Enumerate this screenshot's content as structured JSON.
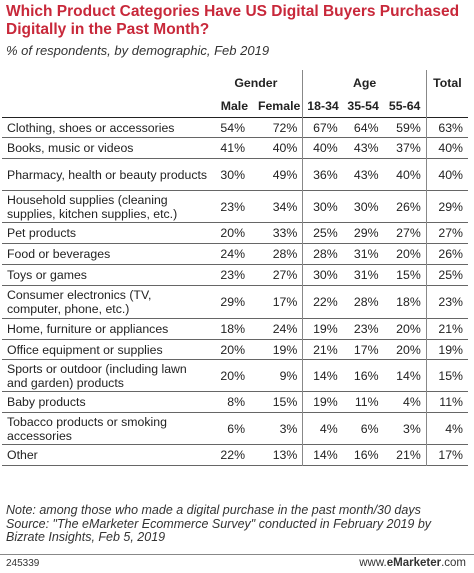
{
  "chart_data": {
    "type": "table",
    "title": "Which Product Categories Have US Digital Buyers Purchased Digitally in the Past Month?",
    "subtitle": "% of respondents, by demographic, Feb 2019",
    "groups": [
      {
        "label": "Gender",
        "columns": [
          "Male",
          "Female"
        ]
      },
      {
        "label": "Age",
        "columns": [
          "18-34",
          "35-54",
          "55-64"
        ]
      },
      {
        "label": "Total",
        "columns": [
          ""
        ]
      }
    ],
    "rows": [
      {
        "category": "Clothing, shoes or accessories",
        "values": [
          "54%",
          "72%",
          "67%",
          "64%",
          "59%",
          "63%"
        ]
      },
      {
        "category": "Books, music or videos",
        "values": [
          "41%",
          "40%",
          "40%",
          "43%",
          "37%",
          "40%"
        ]
      },
      {
        "category": "Pharmacy, health or beauty products",
        "values": [
          "30%",
          "49%",
          "36%",
          "43%",
          "40%",
          "40%"
        ]
      },
      {
        "category": "Household supplies (cleaning supplies, kitchen supplies, etc.)",
        "values": [
          "23%",
          "34%",
          "30%",
          "30%",
          "26%",
          "29%"
        ]
      },
      {
        "category": "Pet products",
        "values": [
          "20%",
          "33%",
          "25%",
          "29%",
          "27%",
          "27%"
        ]
      },
      {
        "category": "Food or beverages",
        "values": [
          "24%",
          "28%",
          "28%",
          "31%",
          "20%",
          "26%"
        ]
      },
      {
        "category": "Toys or games",
        "values": [
          "23%",
          "27%",
          "30%",
          "31%",
          "15%",
          "25%"
        ]
      },
      {
        "category": "Consumer electronics (TV, computer, phone, etc.)",
        "values": [
          "29%",
          "17%",
          "22%",
          "28%",
          "18%",
          "23%"
        ]
      },
      {
        "category": "Home, furniture or appliances",
        "values": [
          "18%",
          "24%",
          "19%",
          "23%",
          "20%",
          "21%"
        ]
      },
      {
        "category": "Office equipment or supplies",
        "values": [
          "20%",
          "19%",
          "21%",
          "17%",
          "20%",
          "19%"
        ]
      },
      {
        "category": "Sports or outdoor (including lawn and garden) products",
        "values": [
          "20%",
          "9%",
          "14%",
          "16%",
          "14%",
          "15%"
        ]
      },
      {
        "category": "Baby products",
        "values": [
          "8%",
          "15%",
          "19%",
          "11%",
          "4%",
          "11%"
        ]
      },
      {
        "category": "Tobacco products or smoking accessories",
        "values": [
          "6%",
          "3%",
          "4%",
          "6%",
          "3%",
          "4%"
        ]
      },
      {
        "category": "Other",
        "values": [
          "22%",
          "13%",
          "14%",
          "16%",
          "21%",
          "17%"
        ]
      }
    ],
    "note": "Note: among those who made a digital purchase in the past month/30 days",
    "source": "Source: \"The eMarketer Ecommerce Survey\" conducted in February 2019 by Bizrate Insights, Feb 5, 2019",
    "chart_id": "245339",
    "brand_prefix": "www.",
    "brand_name": "eMarketer",
    "brand_suffix": ".com"
  },
  "colors": {
    "title": "#c8283a",
    "text": "#222222",
    "rule": "#666666"
  }
}
